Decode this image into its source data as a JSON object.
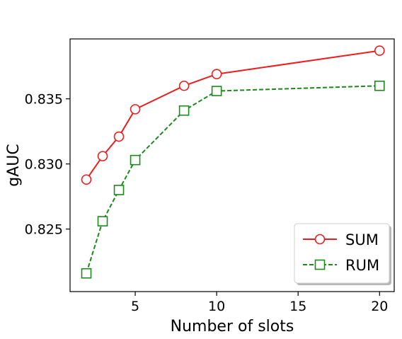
{
  "chart_data": {
    "type": "line",
    "title": "",
    "xlabel": "Number of slots",
    "ylabel": "gAUC",
    "xlim": [
      1.0,
      20.9
    ],
    "ylim": [
      0.8202,
      0.8396
    ],
    "xticks": [
      5,
      10,
      15,
      20
    ],
    "xtick_labels": [
      "5",
      "10",
      "15",
      "20"
    ],
    "yticks": [
      0.825,
      0.83,
      0.835
    ],
    "ytick_labels": [
      "0.825",
      "0.830",
      "0.835"
    ],
    "grid": false,
    "legend_position": "lower-right",
    "series": [
      {
        "name": "SUM",
        "color": "#ee1c1c",
        "line_style": "solid",
        "marker": "circle",
        "x": [
          2,
          3,
          4,
          5,
          8,
          10,
          20
        ],
        "y": [
          0.8288,
          0.8306,
          0.8321,
          0.8342,
          0.836,
          0.8369,
          0.8387
        ]
      },
      {
        "name": "RUM",
        "color": "#1a8a1a",
        "line_style": "dashed",
        "marker": "square",
        "x": [
          2,
          3,
          4,
          5,
          8,
          10,
          20
        ],
        "y": [
          0.8216,
          0.8256,
          0.828,
          0.8303,
          0.8341,
          0.8356,
          0.836
        ]
      }
    ]
  }
}
